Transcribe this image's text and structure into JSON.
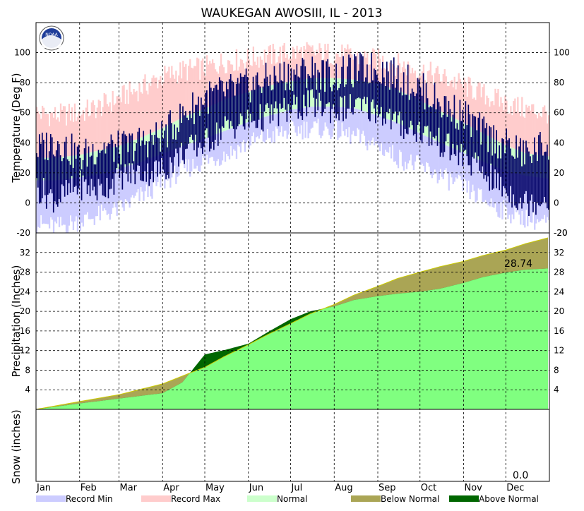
{
  "chart_data": [
    {
      "type": "area",
      "panel": "temperature",
      "title": "WAUKEGAN  AWOSIII, IL - 2013",
      "ylabel": "Temperature (Deg F)",
      "ylim": [
        -20,
        120
      ],
      "yticks": [
        -20,
        0,
        20,
        40,
        60,
        80,
        100
      ],
      "x": [
        "Jan 1",
        "Jan 15",
        "Feb 1",
        "Feb 15",
        "Mar 1",
        "Mar 15",
        "Apr 1",
        "Apr 15",
        "May 1",
        "May 15",
        "Jun 1",
        "Jun 15",
        "Jul 1",
        "Jul 15",
        "Aug 1",
        "Aug 15",
        "Sep 1",
        "Sep 15",
        "Oct 1",
        "Oct 15",
        "Nov 1",
        "Nov 15",
        "Dec 1",
        "Dec 15",
        "Dec 31"
      ],
      "series": [
        {
          "name": "Record Max",
          "color": "#ffcccc",
          "values": [
            60,
            58,
            60,
            64,
            70,
            76,
            84,
            88,
            90,
            94,
            96,
            98,
            100,
            100,
            99,
            97,
            95,
            92,
            88,
            84,
            78,
            72,
            66,
            62,
            60
          ]
        },
        {
          "name": "Normal High",
          "color": "#ccffcc",
          "values": [
            30,
            30,
            32,
            35,
            38,
            43,
            50,
            57,
            63,
            69,
            74,
            78,
            81,
            83,
            83,
            82,
            79,
            75,
            68,
            61,
            53,
            46,
            38,
            33,
            31
          ]
        },
        {
          "name": "Normal Low",
          "color": "#ccffcc",
          "values": [
            15,
            15,
            17,
            19,
            23,
            27,
            33,
            38,
            43,
            48,
            54,
            58,
            62,
            64,
            64,
            63,
            58,
            53,
            46,
            40,
            33,
            27,
            21,
            18,
            16
          ]
        },
        {
          "name": "Record Min",
          "color": "#ccccff",
          "values": [
            -14,
            -16,
            -12,
            -8,
            -4,
            4,
            14,
            22,
            28,
            32,
            40,
            44,
            48,
            50,
            48,
            44,
            38,
            30,
            24,
            18,
            10,
            2,
            -6,
            -10,
            -14
          ]
        },
        {
          "name": "Observed High",
          "color": "#000066",
          "values": [
            35,
            42,
            30,
            38,
            36,
            40,
            45,
            58,
            70,
            74,
            78,
            82,
            86,
            88,
            84,
            88,
            90,
            84,
            76,
            66,
            58,
            46,
            38,
            32,
            40
          ]
        },
        {
          "name": "Observed Low",
          "color": "#000066",
          "values": [
            10,
            2,
            12,
            8,
            18,
            20,
            22,
            34,
            40,
            50,
            54,
            58,
            62,
            66,
            62,
            64,
            62,
            52,
            48,
            40,
            30,
            20,
            8,
            0,
            4
          ]
        }
      ]
    },
    {
      "type": "area",
      "panel": "precipitation",
      "ylabel": "Precipitation (Inches)",
      "ylim": [
        0,
        36
      ],
      "yticks": [
        4,
        8,
        12,
        16,
        20,
        24,
        28,
        32
      ],
      "total_label": "28.74",
      "x": [
        "Jan 1",
        "Feb 1",
        "Mar 1",
        "Apr 1",
        "Apr 15",
        "May 1",
        "May 15",
        "Jun 1",
        "Jun 15",
        "Jul 1",
        "Jul 15",
        "Aug 1",
        "Aug 15",
        "Sep 1",
        "Sep 15",
        "Oct 1",
        "Oct 15",
        "Nov 1",
        "Nov 15",
        "Dec 1",
        "Dec 15",
        "Dec 31"
      ],
      "series": [
        {
          "name": "Normal",
          "values": [
            0,
            1.6,
            3.0,
            5.2,
            6.8,
            8.6,
            10.8,
            13.2,
            15.3,
            17.5,
            19.5,
            21.4,
            23.3,
            25.1,
            26.7,
            28.0,
            29.1,
            30.2,
            31.4,
            32.5,
            33.8,
            35.0
          ]
        },
        {
          "name": "Observed",
          "values": [
            0,
            1.2,
            2.2,
            3.3,
            5.5,
            11.2,
            12.1,
            13.4,
            15.8,
            18.4,
            20.0,
            21.0,
            22.3,
            23.1,
            23.6,
            24.0,
            24.6,
            25.8,
            27.0,
            27.9,
            28.5,
            28.74
          ]
        }
      ]
    },
    {
      "type": "area",
      "panel": "snow",
      "ylabel": "Snow (inches)",
      "total_label": "0.0",
      "values": [
        0
      ]
    }
  ],
  "months": [
    "Jan",
    "Feb",
    "Mar",
    "Apr",
    "May",
    "Jun",
    "Jul",
    "Aug",
    "Sep",
    "Oct",
    "Nov",
    "Dec"
  ],
  "legend": [
    {
      "label": "Record Min",
      "color": "#ccccff"
    },
    {
      "label": "Record Max",
      "color": "#ffcccc"
    },
    {
      "label": "Normal",
      "color": "#ccffcc"
    },
    {
      "label": "Below Normal",
      "color": "#aaa555"
    },
    {
      "label": "Above Normal",
      "color": "#006600"
    }
  ],
  "logo_text": "NOAA",
  "colors": {
    "observed_precip": "#80ff80",
    "below_normal": "#aaa555",
    "above_normal": "#006600",
    "observed_temp": "#000066"
  }
}
